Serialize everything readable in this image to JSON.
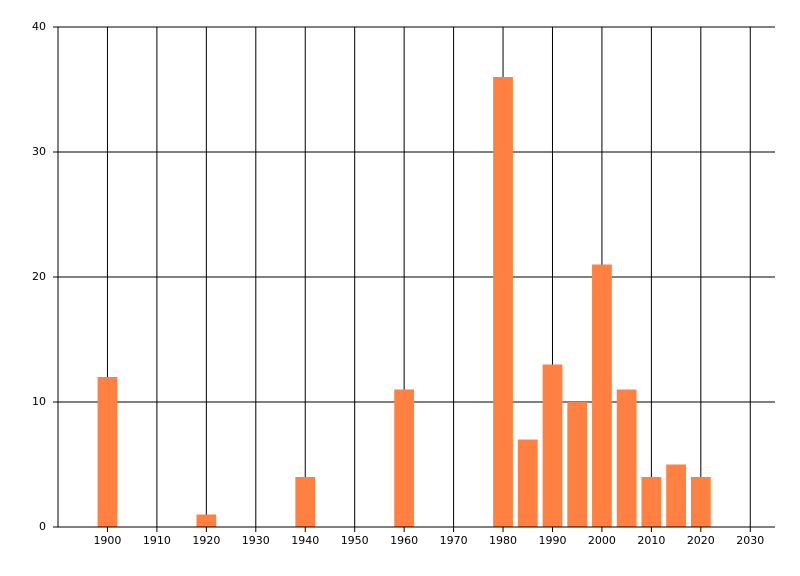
{
  "chart_data": {
    "type": "bar",
    "x": [
      1900,
      1920,
      1940,
      1960,
      1980,
      1985,
      1990,
      1995,
      2000,
      2005,
      2010,
      2015,
      2020
    ],
    "values": [
      12,
      1,
      4,
      11,
      36,
      7,
      13,
      10,
      21,
      11,
      4,
      5,
      4
    ],
    "color": "#ff8040",
    "xlim": [
      1890,
      2035
    ],
    "xticks": [
      1900,
      1910,
      1920,
      1930,
      1940,
      1950,
      1960,
      1970,
      1980,
      1990,
      2000,
      2010,
      2020,
      2030
    ],
    "ylim": [
      0,
      40
    ],
    "yticks": [
      0,
      10,
      20,
      30,
      40
    ],
    "grid": true
  }
}
